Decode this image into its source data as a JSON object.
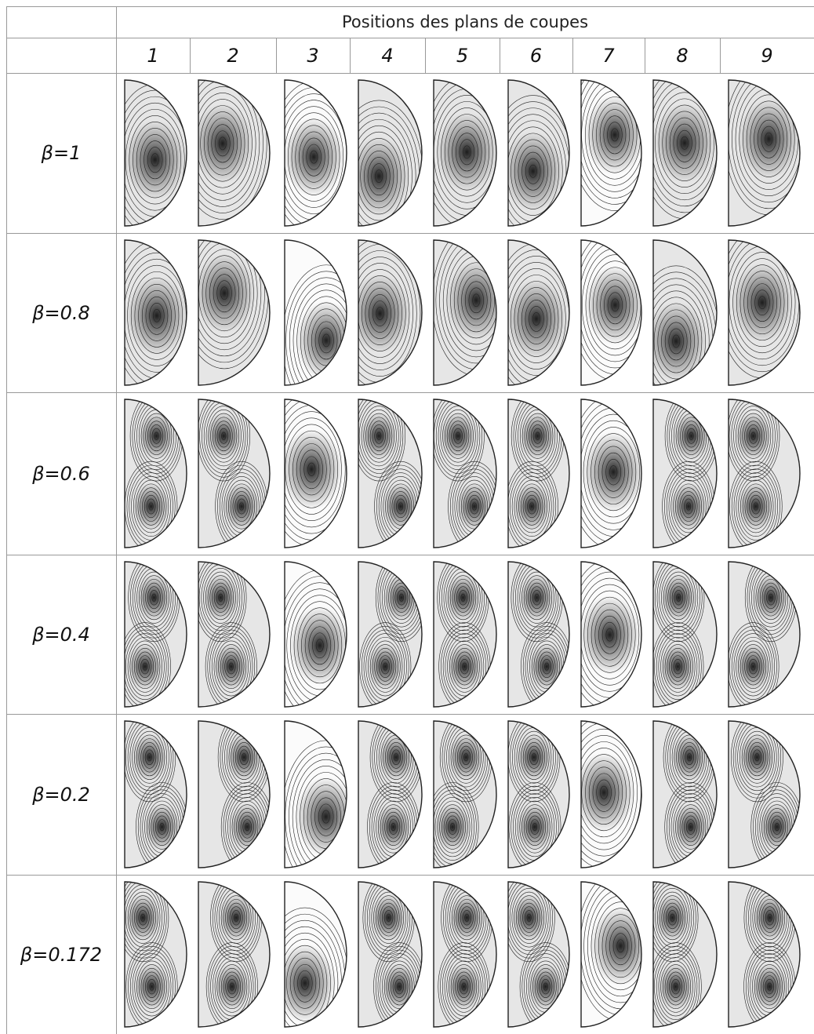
{
  "table": {
    "title": "Positions des plans de coupes",
    "columns": [
      "1",
      "2",
      "3",
      "4",
      "5",
      "6",
      "7",
      "8",
      "9"
    ],
    "rows": [
      "β=1",
      "β=0.8",
      "β=0.6",
      "β=0.4",
      "β=0.2",
      "β=0.172"
    ]
  }
}
